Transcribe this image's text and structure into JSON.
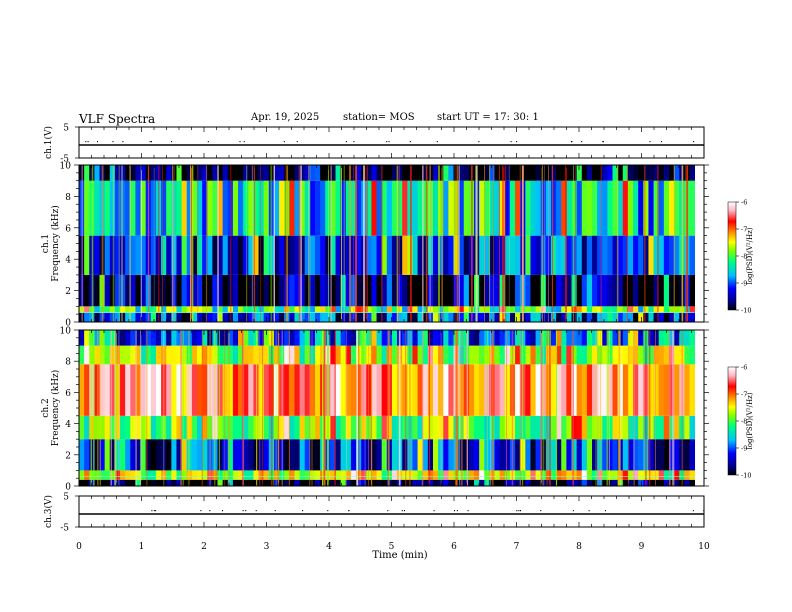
{
  "header": {
    "title": "VLF Spectra",
    "date": "Apr. 19, 2025",
    "station": "station= MOS",
    "start": "start  UT  =   17: 30: 1"
  },
  "chart_data": [
    {
      "type": "line",
      "panel": "ch1-voltage",
      "ylabel": "ch.1(V)",
      "ylim": [
        -5,
        5
      ],
      "yticks": [
        "5",
        "-5"
      ],
      "xlim": [
        0,
        10
      ],
      "series": [
        {
          "x": [
            0,
            10
          ],
          "values": [
            -0.8,
            -0.8
          ]
        }
      ]
    },
    {
      "type": "heatmap",
      "panel": "ch1-spectrogram",
      "ylabel": "ch.1\nFrequency (kHz)",
      "ylim": [
        0,
        10
      ],
      "yticks": [
        "0",
        "2",
        "4",
        "6",
        "8",
        "10"
      ],
      "xlim": [
        0,
        9.85
      ],
      "colorbar": {
        "label": "log(PSD)(V²/Hz)",
        "range": [
          -10,
          -6
        ],
        "ticks": [
          "-6",
          "-7",
          "-8",
          "-9",
          "-10"
        ]
      },
      "bands": [
        {
          "from": 0.0,
          "to": 0.6,
          "level": -9.3
        },
        {
          "from": 0.6,
          "to": 1.0,
          "level": -8.2
        },
        {
          "from": 1.0,
          "to": 3.0,
          "level": -9.7
        },
        {
          "from": 3.0,
          "to": 5.5,
          "level": -9.2
        },
        {
          "from": 5.5,
          "to": 9.0,
          "level": -8.6
        },
        {
          "from": 9.0,
          "to": 10.0,
          "level": -10.0
        }
      ]
    },
    {
      "type": "heatmap",
      "panel": "ch2-spectrogram",
      "ylabel": "ch.2\nFrequency (kHz)",
      "ylim": [
        0,
        10
      ],
      "yticks": [
        "0",
        "2",
        "4",
        "6",
        "8",
        "10"
      ],
      "xlim": [
        0,
        9.85
      ],
      "colorbar": {
        "label": "log(PSD)(V²/Hz)",
        "range": [
          -10,
          -6
        ],
        "ticks": [
          "-6",
          "-7",
          "-8",
          "-9",
          "-10"
        ]
      },
      "bands": [
        {
          "from": 0.0,
          "to": 0.4,
          "level": -9.9
        },
        {
          "from": 0.4,
          "to": 1.0,
          "level": -7.8
        },
        {
          "from": 1.0,
          "to": 3.0,
          "level": -9.3
        },
        {
          "from": 3.0,
          "to": 4.5,
          "level": -8.0
        },
        {
          "from": 4.5,
          "to": 7.8,
          "level": -6.9
        },
        {
          "from": 7.8,
          "to": 9.0,
          "level": -7.9
        },
        {
          "from": 9.0,
          "to": 10.0,
          "level": -9.0
        }
      ]
    },
    {
      "type": "line",
      "panel": "ch3-voltage",
      "ylabel": "ch.3(V)",
      "ylim": [
        -5,
        5
      ],
      "yticks": [
        "5",
        "-5"
      ],
      "xlim": [
        0,
        10
      ],
      "series": [
        {
          "x": [
            0,
            10
          ],
          "values": [
            -0.8,
            -0.8
          ]
        }
      ]
    }
  ],
  "xaxis": {
    "label": "Time (min)",
    "range": [
      0,
      10
    ],
    "ticks": [
      "0",
      "1",
      "2",
      "3",
      "4",
      "5",
      "6",
      "7",
      "8",
      "9",
      "10"
    ]
  },
  "colors": {
    "axis": "#000000",
    "colormap": [
      "#000000",
      "#00008b",
      "#0000ff",
      "#00bfff",
      "#00ff7f",
      "#7fff00",
      "#ffff00",
      "#ff8c00",
      "#ff0000",
      "#ffb6c1",
      "#ffffff"
    ]
  }
}
